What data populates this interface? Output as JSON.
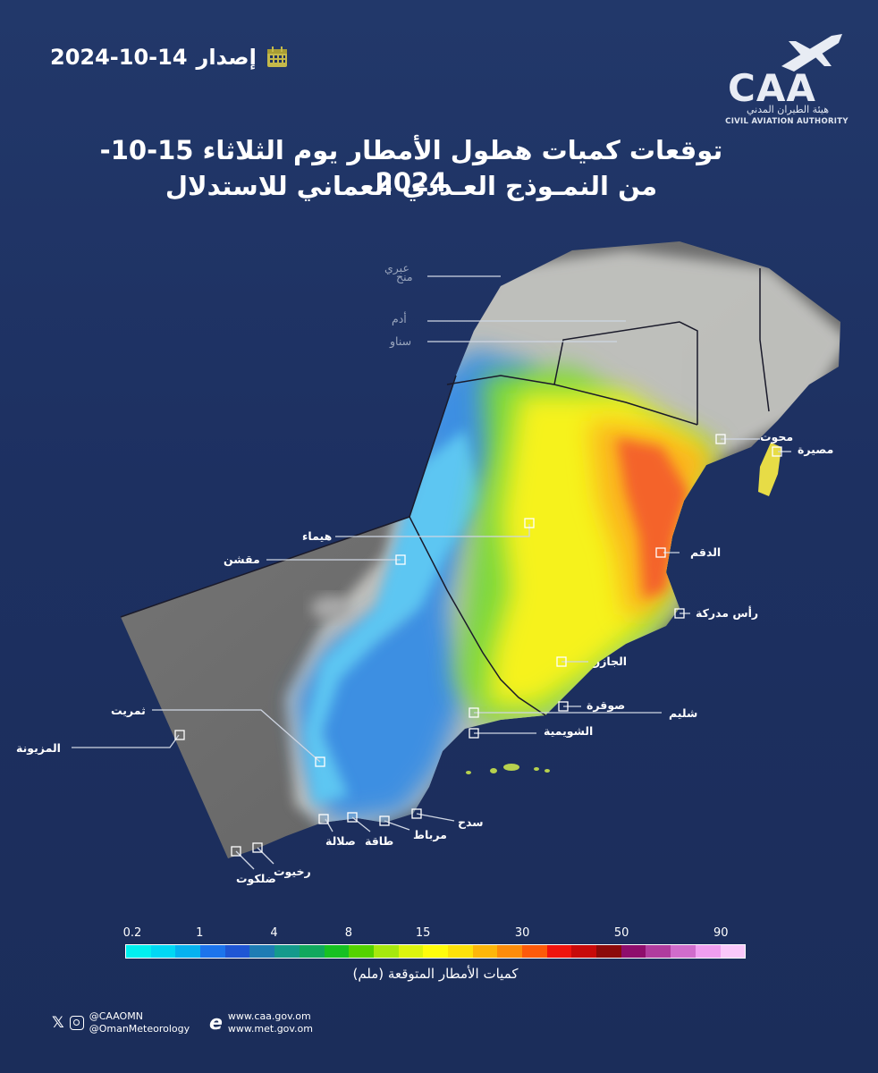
{
  "issue": {
    "label": "إصدار",
    "date": "2024-10-14"
  },
  "logo": {
    "text": "CAA",
    "arabic_name": "هيئة الطيران المدني",
    "english_name": "CIVIL AVIATION AUTHORITY"
  },
  "title": {
    "line1": "توقعات كميات هطول الأمطار يوم الثلاثاء 15-10-2024",
    "line2": "من النمـوذج العـددي العماني للاستدلال"
  },
  "places": [
    {
      "id": "ibri",
      "name": "عبري",
      "style": "dim"
    },
    {
      "id": "manah",
      "name": "منح",
      "style": "dim"
    },
    {
      "id": "adam",
      "name": "أدم",
      "style": "dim"
    },
    {
      "id": "sinaw",
      "name": "سناو",
      "style": "dim"
    },
    {
      "id": "mahout",
      "name": "محوت",
      "style": "bright"
    },
    {
      "id": "masirah",
      "name": "مصيرة",
      "style": "bright"
    },
    {
      "id": "haima",
      "name": "هيماء",
      "style": "bright"
    },
    {
      "id": "muqshin",
      "name": "مقشن",
      "style": "bright"
    },
    {
      "id": "duqm",
      "name": "الدقم",
      "style": "bright"
    },
    {
      "id": "rasmadrakah",
      "name": "رأس مدركة",
      "style": "bright"
    },
    {
      "id": "aljazir",
      "name": "الجازر",
      "style": "bright"
    },
    {
      "id": "sawqrah",
      "name": "صوقرة",
      "style": "bright"
    },
    {
      "id": "shalim",
      "name": "شليم",
      "style": "bright"
    },
    {
      "id": "thumrait",
      "name": "ثمريت",
      "style": "bright"
    },
    {
      "id": "shuwaymiyah",
      "name": "الشويمية",
      "style": "bright"
    },
    {
      "id": "mazyunah",
      "name": "المزيونة",
      "style": "bright"
    },
    {
      "id": "sadah",
      "name": "سدح",
      "style": "bright"
    },
    {
      "id": "mirbat",
      "name": "مرباط",
      "style": "bright"
    },
    {
      "id": "taqah",
      "name": "طاقة",
      "style": "bright"
    },
    {
      "id": "salalah",
      "name": "صلالة",
      "style": "bright"
    },
    {
      "id": "rakhyut",
      "name": "رخيوت",
      "style": "bright"
    },
    {
      "id": "dhalkut",
      "name": "ضلكوت",
      "style": "bright"
    }
  ],
  "legend": {
    "title": "كميات الأمطار المتوقعة  (ملم)",
    "ticks": [
      "0.2",
      "1",
      "4",
      "8",
      "15",
      "30",
      "50",
      "90"
    ],
    "tick_classes": [
      0,
      3,
      6,
      9,
      12,
      16,
      20,
      24
    ],
    "colors": [
      "#00f0f0",
      "#00d8f4",
      "#06b2f0",
      "#1c74ec",
      "#1f56d4",
      "#1e7cb4",
      "#149a8c",
      "#11a85e",
      "#17c122",
      "#54d200",
      "#a6e80e",
      "#dcf40e",
      "#fffc0c",
      "#fde10a",
      "#fdb60a",
      "#fd8c0a",
      "#fd5a0a",
      "#f0140e",
      "#c80a0a",
      "#8c0a0a",
      "#8e0e6c",
      "#b03c9e",
      "#d06ccc",
      "#f09ef0",
      "#fac8fa"
    ]
  },
  "social": {
    "handle1": "@CAAOMN",
    "handle2": "@OmanMeteorology"
  },
  "web": {
    "site1": "www.caa.gov.om",
    "site2": "www.met.gov.om"
  }
}
